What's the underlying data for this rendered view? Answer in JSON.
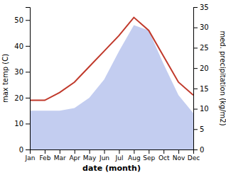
{
  "chart_data": {
    "type": "line",
    "categories": [
      "Jan",
      "Feb",
      "Mar",
      "Apr",
      "May",
      "Jun",
      "Jul",
      "Aug",
      "Sep",
      "Oct",
      "Nov",
      "Dec"
    ],
    "series": [
      {
        "type": "area",
        "color": "#b8c4ed",
        "values": [
          15,
          15,
          15,
          16,
          20,
          27,
          38,
          48,
          46,
          33,
          21,
          14
        ]
      },
      {
        "type": "line",
        "color": "#c0392b",
        "values": [
          19,
          19,
          22,
          26,
          32,
          38,
          44,
          51,
          46,
          36,
          26,
          21
        ]
      }
    ],
    "ylim": [
      0,
      55
    ],
    "yticks": [
      0,
      10,
      20,
      30,
      40,
      50
    ],
    "y2lim": [
      0,
      35
    ],
    "y2ticks": [
      0,
      5,
      10,
      15,
      20,
      25,
      30,
      35
    ],
    "xlabel": "date (month)",
    "ylabel": "max temp (C)",
    "y2label": "med. precipitation (kg/m2)"
  }
}
